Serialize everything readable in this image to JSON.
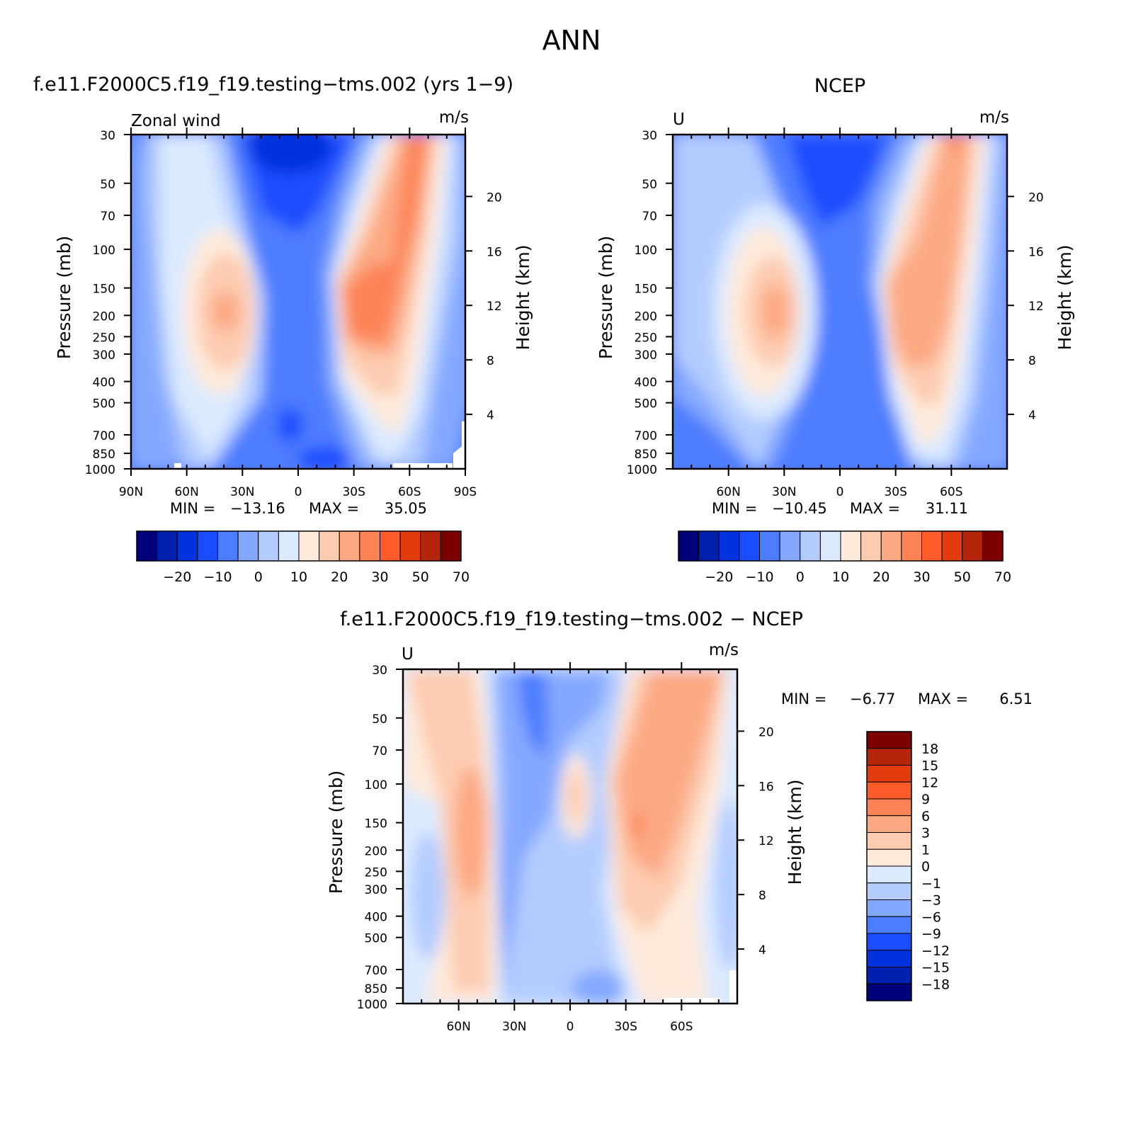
{
  "figure": {
    "title": "ANN"
  },
  "colorbars": {
    "field": {
      "labels": [
        "-20",
        "-10",
        "0",
        "10",
        "20",
        "30",
        "50",
        "70"
      ],
      "colors": [
        "#00007a",
        "#0020b0",
        "#0033dd",
        "#1a4dff",
        "#4d7dff",
        "#85a8ff",
        "#b4ccff",
        "#dbeaff",
        "#feeadb",
        "#fdcbb0",
        "#fca983",
        "#fd8356",
        "#fe5a2a",
        "#e23b0e",
        "#b5250b",
        "#7d0000"
      ]
    },
    "diff": {
      "labels": [
        "18",
        "15",
        "12",
        "9",
        "6",
        "3",
        "1",
        "0",
        "-1",
        "-3",
        "-6",
        "-9",
        "-12",
        "-15",
        "-18"
      ],
      "colors": [
        "#7d0000",
        "#b5250b",
        "#e23b0e",
        "#fe5a2a",
        "#fd8356",
        "#fca983",
        "#fdcbb0",
        "#feeadb",
        "#dbeaff",
        "#b4ccff",
        "#85a8ff",
        "#4d7dff",
        "#1a4dff",
        "#0033dd",
        "#0020b0",
        "#00007a"
      ]
    }
  },
  "chart_data": [
    {
      "type": "heatmap",
      "title": "f.e11.F2000C5.f19_f19.testing−tms.002 (yrs 1−9)",
      "left_label": "Zonal wind",
      "right_label": "m/s",
      "xlabel": "",
      "ylabel": "Pressure (mb)",
      "y2label": "Height (km)",
      "x_ticks": [
        90,
        60,
        30,
        0,
        -30,
        -60,
        -90
      ],
      "x_tick_labels": [
        "90N",
        "60N",
        "30N",
        "0",
        "30S",
        "60S",
        "90S"
      ],
      "y_ticks": [
        30,
        50,
        70,
        100,
        150,
        200,
        250,
        300,
        400,
        500,
        700,
        850,
        1000
      ],
      "y_tick_labels": [
        "30",
        "50",
        "70",
        "100",
        "150",
        "200",
        "250",
        "300",
        "400",
        "500",
        "700",
        "850",
        "1000"
      ],
      "y2_ticks": [
        20,
        16,
        12,
        8,
        4
      ],
      "y2_tick_labels": [
        "20",
        "16",
        "12",
        "8",
        "4"
      ],
      "min_label": "MIN =",
      "min_value": "−13.16",
      "max_label": "MAX =",
      "max_value": "35.05",
      "data": [
        {
          "lat": 40,
          "p": 200,
          "value": 27
        },
        {
          "lat": -30,
          "p": 180,
          "value": 35
        },
        {
          "lat": -60,
          "p": 40,
          "value": 32
        },
        {
          "lat": 5,
          "p": 40,
          "value": -13
        },
        {
          "lat": 5,
          "p": 600,
          "value": -5
        }
      ]
    },
    {
      "type": "heatmap",
      "title": "NCEP",
      "left_label": "U",
      "right_label": "m/s",
      "xlabel": "",
      "ylabel": "Pressure (mb)",
      "y2label": "Height (km)",
      "x_ticks": [
        60,
        30,
        0,
        -30,
        -60
      ],
      "x_tick_labels": [
        "60N",
        "30N",
        "0",
        "30S",
        "60S"
      ],
      "y_ticks": [
        30,
        50,
        70,
        100,
        150,
        200,
        250,
        300,
        400,
        500,
        700,
        850,
        1000
      ],
      "y_tick_labels": [
        "30",
        "50",
        "70",
        "100",
        "150",
        "200",
        "250",
        "300",
        "400",
        "500",
        "700",
        "850",
        "1000"
      ],
      "y2_ticks": [
        20,
        16,
        12,
        8,
        4
      ],
      "y2_tick_labels": [
        "20",
        "16",
        "12",
        "8",
        "4"
      ],
      "min_label": "MIN =",
      "min_value": "−10.45",
      "max_label": "MAX =",
      "max_value": "31.11",
      "data": [
        {
          "lat": 40,
          "p": 200,
          "value": 25
        },
        {
          "lat": -30,
          "p": 200,
          "value": 31
        },
        {
          "lat": -60,
          "p": 30,
          "value": 31
        },
        {
          "lat": 5,
          "p": 40,
          "value": -10
        }
      ]
    },
    {
      "type": "heatmap",
      "title": "f.e11.F2000C5.f19_f19.testing−tms.002 − NCEP",
      "left_label": "U",
      "right_label": "m/s",
      "xlabel": "",
      "ylabel": "Pressure (mb)",
      "y2label": "Height (km)",
      "x_ticks": [
        60,
        30,
        0,
        -30,
        -60
      ],
      "x_tick_labels": [
        "60N",
        "30N",
        "0",
        "30S",
        "60S"
      ],
      "y_ticks": [
        30,
        50,
        70,
        100,
        150,
        200,
        250,
        300,
        400,
        500,
        700,
        850,
        1000
      ],
      "y_tick_labels": [
        "30",
        "50",
        "70",
        "100",
        "150",
        "200",
        "250",
        "300",
        "400",
        "500",
        "700",
        "850",
        "1000"
      ],
      "y2_ticks": [
        20,
        16,
        12,
        8,
        4
      ],
      "y2_tick_labels": [
        "20",
        "16",
        "12",
        "8",
        "4"
      ],
      "min_label": "MIN =",
      "min_value": "−6.77",
      "max_label": "MAX =",
      "max_value": "6.51",
      "data": [
        {
          "lat": 48,
          "p": 180,
          "value": 4
        },
        {
          "lat": -35,
          "p": 150,
          "value": 6.5
        },
        {
          "lat": 25,
          "p": 60,
          "value": -6.8
        },
        {
          "lat": 0,
          "p": 150,
          "value": 2
        }
      ]
    }
  ]
}
